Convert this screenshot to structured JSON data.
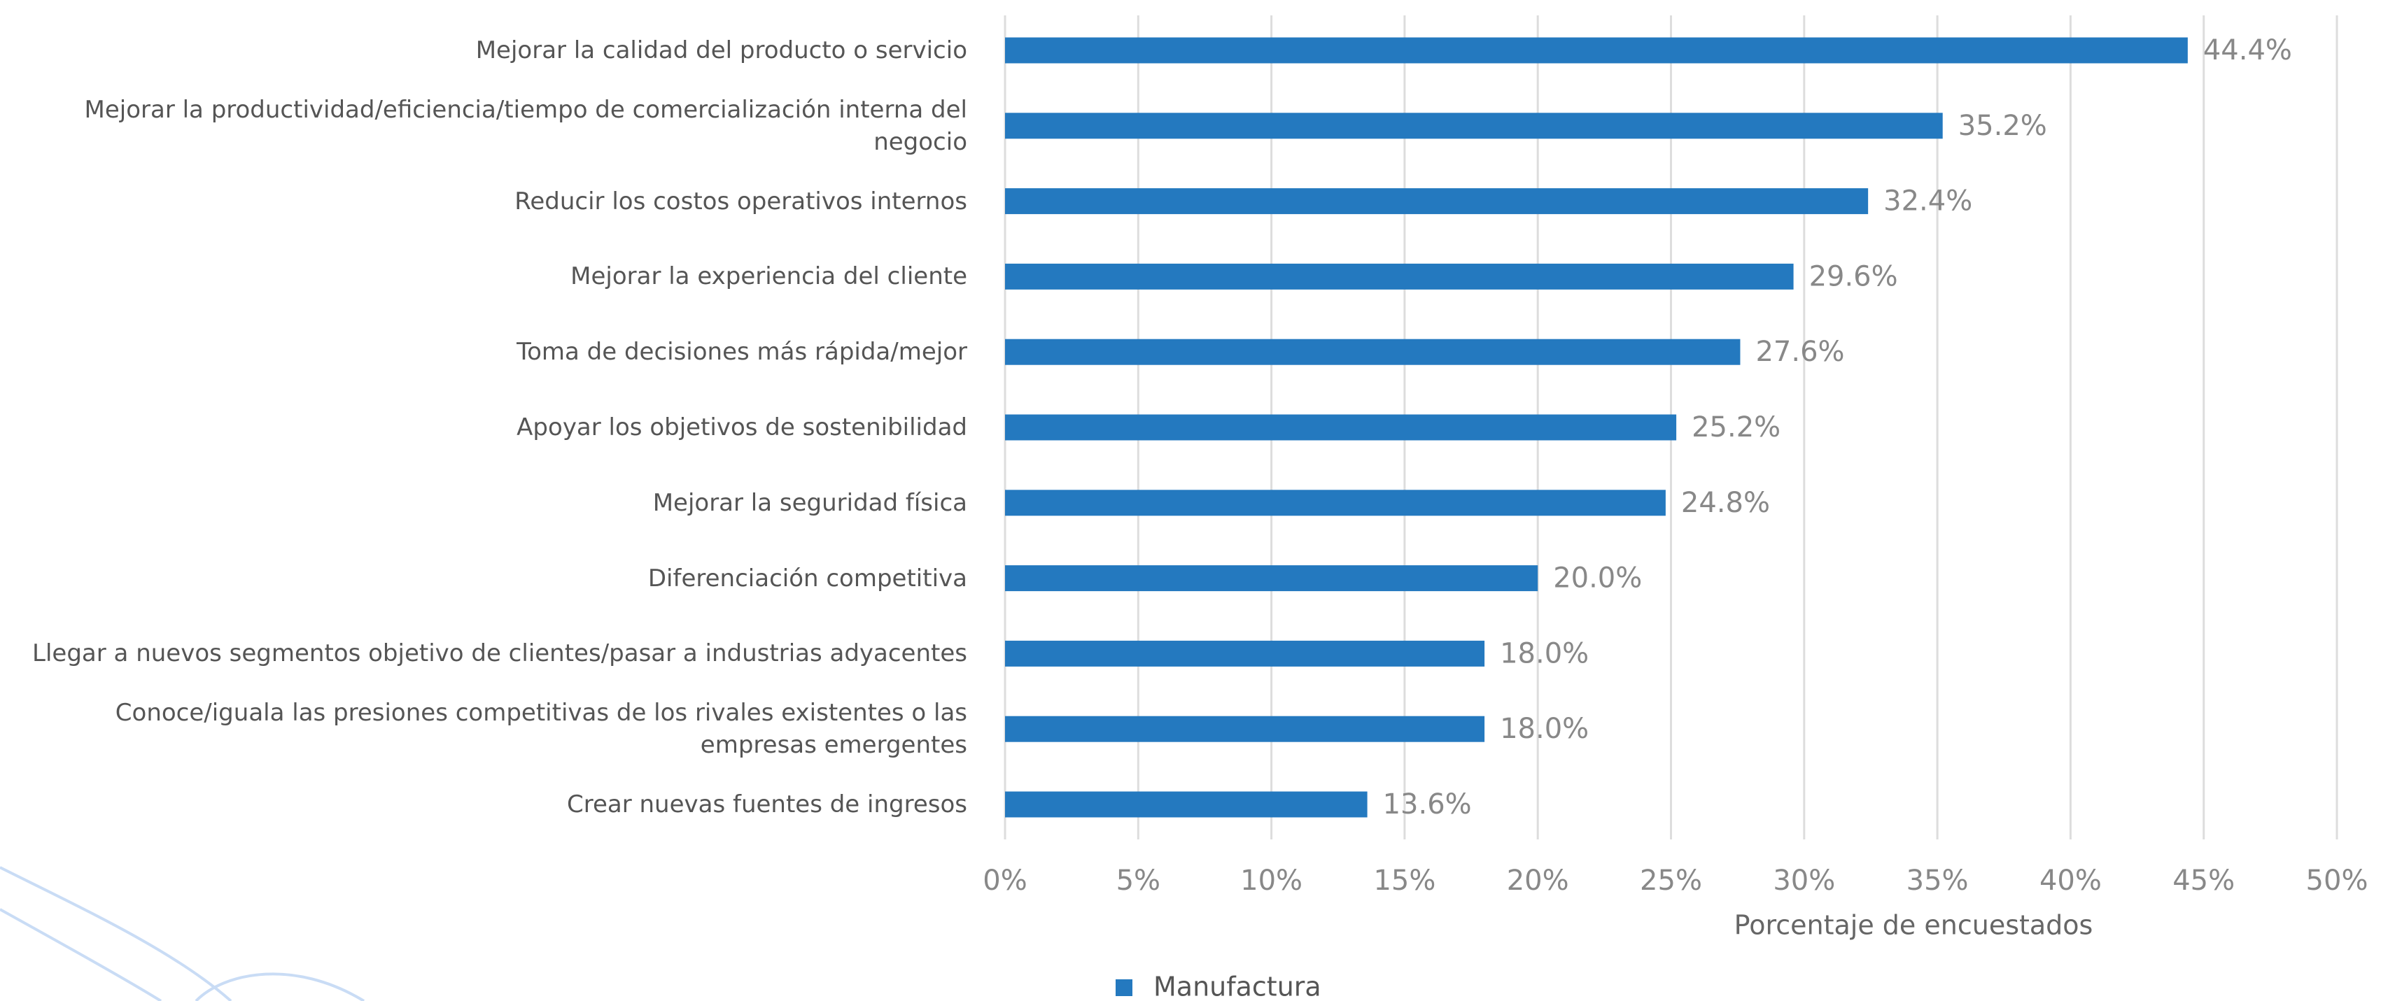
{
  "chart_data": {
    "type": "bar",
    "orientation": "horizontal",
    "categories": [
      "Mejorar la calidad del producto o servicio",
      "Mejorar la productividad/eficiencia/tiempo de comercialización interna del negocio",
      "Reducir los costos operativos internos",
      "Mejorar la experiencia del cliente",
      "Toma de decisiones más rápida/mejor",
      "Apoyar los objetivos de sostenibilidad",
      "Mejorar la seguridad física",
      "Diferenciación competitiva",
      "Llegar a nuevos segmentos objetivo de clientes/pasar a industrias adyacentes",
      "Conoce/iguala las presiones competitivas de los rivales existentes o las empresas emergentes",
      "Crear nuevas fuentes de ingresos"
    ],
    "series": [
      {
        "name": "Manufactura",
        "color": "#2479bf",
        "values": [
          44.4,
          35.2,
          32.4,
          29.6,
          27.6,
          25.2,
          24.8,
          20.0,
          18.0,
          18.0,
          13.6
        ],
        "value_labels": [
          "44.4%",
          "35.2%",
          "32.4%",
          "29.6%",
          "27.6%",
          "25.2%",
          "24.8%",
          "20.0%",
          "18.0%",
          "18.0%",
          "13.6%"
        ]
      }
    ],
    "xlim": [
      0,
      50
    ],
    "xticks": [
      {
        "value": 0,
        "label": "0%"
      },
      {
        "value": 5,
        "label": "5%"
      },
      {
        "value": 10,
        "label": "10%"
      },
      {
        "value": 15,
        "label": "15%"
      },
      {
        "value": 20,
        "label": "20%"
      },
      {
        "value": 25,
        "label": "25%"
      },
      {
        "value": 30,
        "label": "30%"
      },
      {
        "value": 35,
        "label": "35%"
      },
      {
        "value": 40,
        "label": "40%"
      },
      {
        "value": 45,
        "label": "45%"
      },
      {
        "value": 50,
        "label": "50%"
      }
    ],
    "x_label": "Porcentaje de encuestados",
    "grid": true
  }
}
